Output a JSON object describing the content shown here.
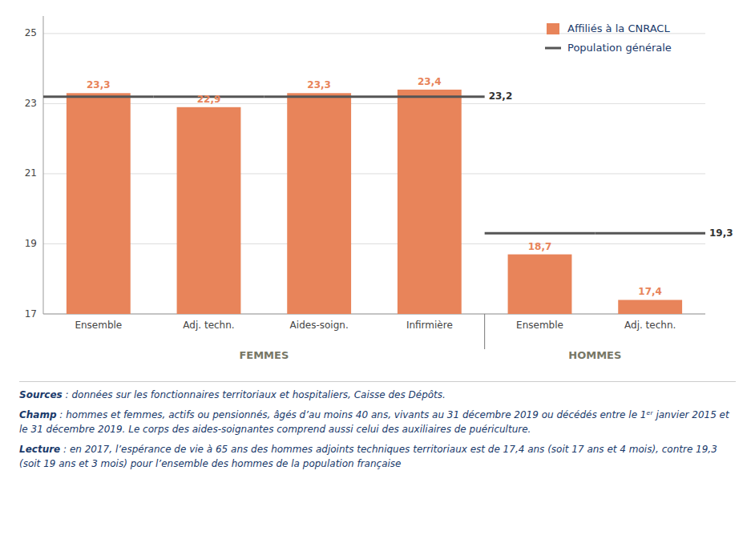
{
  "chart_data": {
    "type": "bar",
    "categories": [
      "Ensemble",
      "Adj. techn.",
      "Aides-soign.",
      "Infirmière",
      "Ensemble",
      "Adj. techn."
    ],
    "series": [
      {
        "name": "Affiliés à la CNRACL",
        "type": "bar",
        "color": "#E8845A",
        "values": [
          23.3,
          22.9,
          23.3,
          23.4,
          18.7,
          17.4
        ],
        "value_labels": [
          "23,3",
          "22,9",
          "23,3",
          "23,4",
          "18,7",
          "17,4"
        ]
      },
      {
        "name": "Population générale",
        "type": "line",
        "color": "#555555",
        "values": [
          23.2,
          23.2,
          23.2,
          23.2,
          19.3,
          19.3
        ]
      }
    ],
    "annotations": [
      {
        "text": "23,2",
        "y": 23.2
      },
      {
        "text": "19,3",
        "y": 19.3
      }
    ],
    "category_groups": [
      {
        "label": "FEMMES",
        "size": 4
      },
      {
        "label": "HOMMES",
        "size": 2
      }
    ],
    "ylim": [
      17,
      25.5
    ],
    "yticks": [
      17,
      19,
      21,
      23,
      25
    ],
    "grid": true,
    "legend": "upper right",
    "data_labels": true,
    "notes": [
      {
        "bold": "Sources",
        "text": " : données sur les fonctionnaires territoriaux et hospitaliers, Caisse des Dépôts."
      },
      {
        "bold": "Champ",
        "text": " : hommes et femmes, actifs ou pensionnés, âgés d’au moins 40 ans, vivants au 31 décembre 2019 ou décédés entre le 1ᵉʳ janvier 2015 et le 31 décembre 2019. Le corps des aides-soignantes comprend aussi celui des auxiliaires de puériculture."
      },
      {
        "bold": "Lecture",
        "text": " : en 2017, l’espérance de vie à 65 ans des hommes adjoints techniques territoriaux est de 17,4 ans (soit 17 ans et 4 mois), contre 19,3 (soit 19 ans et 3 mois) pour l’ensemble des hommes de la population française"
      }
    ]
  }
}
